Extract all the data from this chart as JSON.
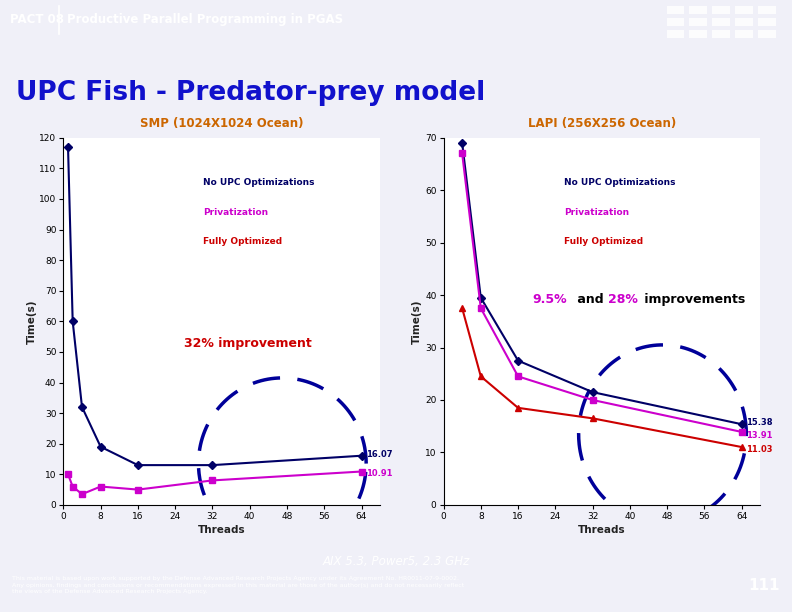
{
  "title": "UPC Fish - Predator-prey model",
  "title_color": "#1111CC",
  "header_bg": "#3355BB",
  "header_text": "PACT 08",
  "header_subtitle": "Productive Parallel Programming in PGAS",
  "footer_text": "AIX 5.3, Power5, 2.3 GHz",
  "footer_small": "This material is based upon work supported by the Defense Advanced Research Projects Agency under its Agreement No. HR0011-07-9-0002.\nAny opinions, findings and conclusions or recommendations expressed in this material are those of the author(s) and do not necessarily reflect\nthe views of the Defense Advanced Research Projects Agency.",
  "slide_num": "111",
  "bg_color": "#F0F0F8",
  "slide_bg": "#FFFFFF",
  "left_title": "SMP (1024X1024 Ocean)",
  "left_title_color": "#CC6600",
  "left_xlabel": "Threads",
  "left_ylabel": "Time(s)",
  "left_ylim": [
    0,
    120
  ],
  "left_yticks": [
    0,
    10,
    20,
    30,
    40,
    50,
    60,
    70,
    80,
    90,
    100,
    110,
    120
  ],
  "left_xlim": [
    0,
    68
  ],
  "left_xticks": [
    0,
    8,
    16,
    24,
    32,
    40,
    48,
    56,
    64
  ],
  "smp_no_upc_x": [
    1,
    2,
    4,
    8,
    16,
    32,
    64
  ],
  "smp_no_upc_y": [
    117,
    60,
    32,
    19,
    13,
    13,
    16.07
  ],
  "smp_no_upc_color": "#000066",
  "smp_no_upc_marker": "D",
  "smp_privatization_x": [
    1,
    2,
    4,
    8,
    16,
    32,
    64
  ],
  "smp_privatization_y": [
    10,
    6,
    3.5,
    6,
    5,
    8,
    10.91
  ],
  "smp_privatization_color": "#CC00CC",
  "smp_privatization_marker": "s",
  "smp_label_16_07": "16.07",
  "smp_label_10_91": "10.91",
  "smp_improvement_text": "32% improvement",
  "smp_improvement_color": "#CC0000",
  "right_title": "LAPI (256X256 Ocean)",
  "right_title_color": "#CC6600",
  "right_xlabel": "Threads",
  "right_ylabel": "Time(s)",
  "right_ylim": [
    0,
    70
  ],
  "right_yticks": [
    0,
    10,
    20,
    30,
    40,
    50,
    60,
    70
  ],
  "right_xlim": [
    0,
    68
  ],
  "right_xticks": [
    0,
    8,
    16,
    24,
    32,
    40,
    48,
    56,
    64
  ],
  "lapi_no_upc_x": [
    4,
    8,
    16,
    32,
    64
  ],
  "lapi_no_upc_y": [
    69,
    39.5,
    27.5,
    21.5,
    15.38
  ],
  "lapi_no_upc_color": "#000066",
  "lapi_no_upc_marker": "D",
  "lapi_privatization_x": [
    4,
    8,
    16,
    32,
    64
  ],
  "lapi_privatization_y": [
    67,
    37.5,
    24.5,
    20,
    13.91
  ],
  "lapi_privatization_color": "#CC00CC",
  "lapi_privatization_marker": "s",
  "lapi_fully_x": [
    4,
    8,
    16,
    32,
    64
  ],
  "lapi_fully_y": [
    37.5,
    24.5,
    18.5,
    16.5,
    11.03
  ],
  "lapi_fully_color": "#CC0000",
  "lapi_fully_marker": "^",
  "lapi_label_15_38": "15.38",
  "lapi_label_13_91": "13.91",
  "lapi_label_11_03": "11.03",
  "legend_no_upc_color": "#000066",
  "legend_priv_color": "#CC00CC",
  "legend_fully_color": "#CC0000",
  "legend_no_upc_text": "No UPC Optimizations",
  "legend_priv_text": "Privatization",
  "legend_fully_text": "Fully Optimized",
  "ellipse_color": "#000099"
}
